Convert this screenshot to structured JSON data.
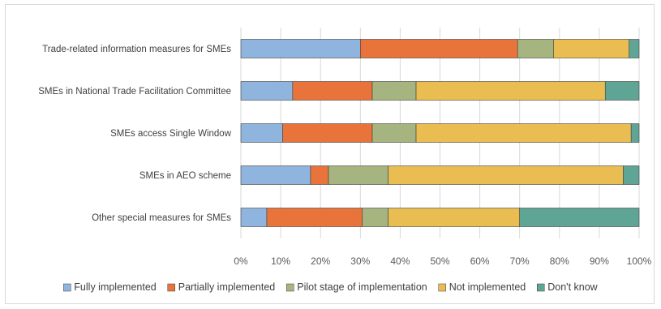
{
  "chart_data": {
    "type": "bar",
    "orientation": "horizontal",
    "stacked": true,
    "percent": true,
    "categories": [
      "Trade-related information measures for SMEs",
      "SMEs in National Trade Facilitation Committee",
      "SMEs access Single Window",
      "SMEs in AEO scheme",
      "Other special measures for SMEs"
    ],
    "series": [
      {
        "name": "Fully implemented",
        "color": "#8fb4dd",
        "values": [
          30,
          13,
          10.5,
          17.5,
          6.5
        ]
      },
      {
        "name": "Partially implemented",
        "color": "#e8743b",
        "values": [
          39.5,
          20,
          22.5,
          4.5,
          24
        ]
      },
      {
        "name": "Pilot stage of implementation",
        "color": "#a6b47f",
        "values": [
          9,
          11,
          11,
          15,
          6.5
        ]
      },
      {
        "name": "Not implemented",
        "color": "#e9bd52",
        "values": [
          19,
          47.5,
          54,
          59,
          33
        ]
      },
      {
        "name": "Don't know",
        "color": "#5fa596",
        "values": [
          2.5,
          8.5,
          2,
          4,
          30
        ]
      }
    ],
    "xlim": [
      0,
      100
    ],
    "xticks": [
      "0%",
      "10%",
      "20%",
      "30%",
      "40%",
      "50%",
      "60%",
      "70%",
      "80%",
      "90%",
      "100%"
    ],
    "grid": true,
    "legend_position": "bottom",
    "title": "",
    "xlabel": "",
    "ylabel": ""
  }
}
